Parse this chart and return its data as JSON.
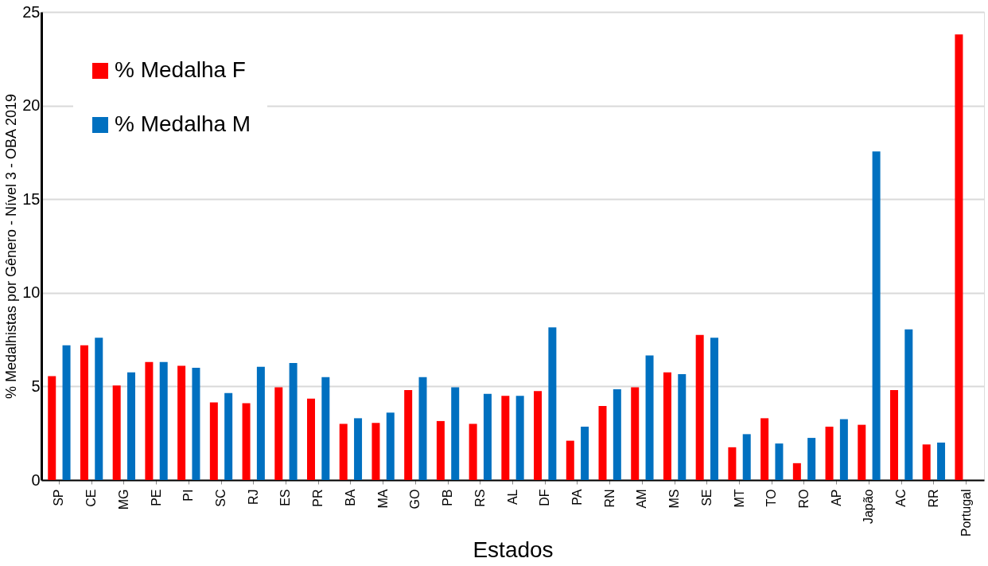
{
  "chart_data": {
    "type": "bar",
    "xlabel": "Estados",
    "ylabel": "% Medalhistas por Gênero - Nível 3 - OBA 2019",
    "categories": [
      "SP",
      "CE",
      "MG",
      "PE",
      "PI",
      "SC",
      "RJ",
      "ES",
      "PR",
      "BA",
      "MA",
      "GO",
      "PB",
      "RS",
      "AL",
      "DF",
      "PA",
      "RN",
      "AM",
      "MS",
      "SE",
      "MT",
      "TO",
      "RO",
      "AP",
      "Japão",
      "AC",
      "RR",
      "Portugal"
    ],
    "series": [
      {
        "name": "% Medalha F",
        "color": "#ff0000",
        "values": [
          5.55,
          7.2,
          5.05,
          6.3,
          6.1,
          4.15,
          4.1,
          4.95,
          4.35,
          3.0,
          3.05,
          4.8,
          3.15,
          3.0,
          4.5,
          4.75,
          2.1,
          3.95,
          4.95,
          5.75,
          7.75,
          1.75,
          3.3,
          0.9,
          2.85,
          2.95,
          4.8,
          1.9,
          23.8
        ]
      },
      {
        "name": "% Medalha M",
        "color": "#0070c0",
        "values": [
          7.2,
          7.6,
          5.75,
          6.3,
          6.0,
          4.65,
          6.05,
          6.25,
          5.5,
          3.3,
          3.6,
          5.5,
          4.95,
          4.6,
          4.5,
          8.15,
          2.85,
          4.85,
          6.65,
          5.65,
          7.6,
          2.45,
          1.95,
          2.25,
          3.25,
          17.55,
          8.05,
          2.0,
          null
        ]
      }
    ],
    "ylim": [
      0,
      25
    ],
    "yticks": [
      0,
      5,
      10,
      15,
      20,
      25
    ],
    "grid": "y",
    "legend": "top left"
  }
}
